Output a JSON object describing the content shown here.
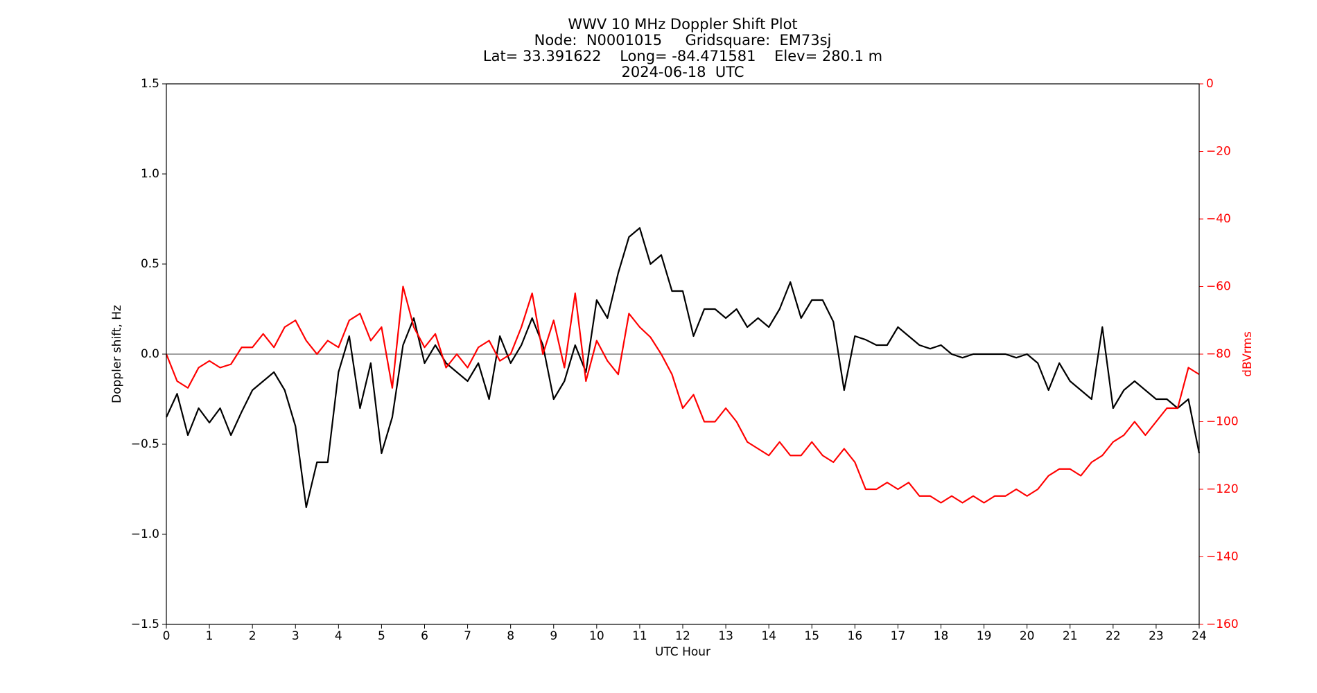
{
  "chart_data": {
    "type": "line",
    "title": [
      "WWV 10 MHz Doppler Shift Plot",
      "Node:  N0001015     Gridsquare:  EM73sj",
      "Lat= 33.391622    Long= -84.471581    Elev= 280.1 m",
      "2024-06-18  UTC"
    ],
    "xlabel": "UTC Hour",
    "ylabel": "Doppler shift, Hz",
    "y2label": "dBVrms",
    "x": [
      0,
      0.25,
      0.5,
      0.75,
      1,
      1.25,
      1.5,
      1.75,
      2,
      2.25,
      2.5,
      2.75,
      3,
      3.25,
      3.5,
      3.75,
      4,
      4.25,
      4.5,
      4.75,
      5,
      5.25,
      5.5,
      5.75,
      6,
      6.25,
      6.5,
      6.75,
      7,
      7.25,
      7.5,
      7.75,
      8,
      8.25,
      8.5,
      8.75,
      9,
      9.25,
      9.5,
      9.75,
      10,
      10.25,
      10.5,
      10.75,
      11,
      11.25,
      11.5,
      11.75,
      12,
      12.25,
      12.5,
      12.75,
      13,
      13.25,
      13.5,
      13.75,
      14,
      14.25,
      14.5,
      14.75,
      15,
      15.25,
      15.5,
      15.75,
      16,
      16.25,
      16.5,
      16.75,
      17,
      17.25,
      17.5,
      17.75,
      18,
      18.25,
      18.5,
      18.75,
      19,
      19.25,
      19.5,
      19.75,
      20,
      20.25,
      20.5,
      20.75,
      21,
      21.25,
      21.5,
      21.75,
      22,
      22.25,
      22.5,
      22.75,
      23,
      23.25,
      23.5,
      23.75,
      24
    ],
    "series": [
      {
        "name": "Doppler shift",
        "color": "#000000",
        "axis": "y",
        "values": [
          -0.35,
          -0.22,
          -0.45,
          -0.3,
          -0.38,
          -0.3,
          -0.45,
          -0.32,
          -0.2,
          -0.15,
          -0.1,
          -0.2,
          -0.4,
          -0.85,
          -0.6,
          -0.6,
          -0.1,
          0.1,
          -0.3,
          -0.05,
          -0.55,
          -0.35,
          0.05,
          0.2,
          -0.05,
          0.05,
          -0.05,
          -0.1,
          -0.15,
          -0.05,
          -0.25,
          0.1,
          -0.05,
          0.05,
          0.2,
          0.05,
          -0.25,
          -0.15,
          0.05,
          -0.1,
          0.3,
          0.2,
          0.45,
          0.65,
          0.7,
          0.5,
          0.55,
          0.35,
          0.35,
          0.1,
          0.25,
          0.25,
          0.2,
          0.25,
          0.15,
          0.2,
          0.15,
          0.25,
          0.4,
          0.2,
          0.3,
          0.3,
          0.18,
          -0.2,
          0.1,
          0.08,
          0.05,
          0.05,
          0.15,
          0.1,
          0.05,
          0.03,
          0.05,
          0,
          -0.02,
          0,
          0,
          0,
          0,
          -0.02,
          0,
          -0.05,
          -0.2,
          -0.05,
          -0.15,
          -0.2,
          -0.25,
          0.15,
          -0.3,
          -0.2,
          -0.15,
          -0.2,
          -0.25,
          -0.25,
          -0.3,
          -0.25,
          -0.55
        ]
      },
      {
        "name": "dBVrms",
        "color": "#ff0000",
        "axis": "y2",
        "values": [
          -80,
          -88,
          -90,
          -84,
          -82,
          -84,
          -83,
          -78,
          -78,
          -74,
          -78,
          -72,
          -70,
          -76,
          -80,
          -76,
          -78,
          -70,
          -68,
          -76,
          -72,
          -90,
          -60,
          -72,
          -78,
          -74,
          -84,
          -80,
          -84,
          -78,
          -76,
          -82,
          -80,
          -72,
          -62,
          -80,
          -70,
          -84,
          -62,
          -88,
          -76,
          -82,
          -86,
          -68,
          -72,
          -75,
          -80,
          -86,
          -96,
          -92,
          -100,
          -100,
          -96,
          -100,
          -106,
          -108,
          -110,
          -106,
          -110,
          -110,
          -106,
          -110,
          -112,
          -108,
          -112,
          -120,
          -120,
          -118,
          -120,
          -118,
          -122,
          -122,
          -124,
          -122,
          -124,
          -122,
          -124,
          -122,
          -122,
          -120,
          -122,
          -120,
          -116,
          -114,
          -114,
          -116,
          -112,
          -110,
          -106,
          -104,
          -100,
          -104,
          -100,
          -96,
          -96,
          -84,
          -86
        ]
      }
    ],
    "xlim": [
      0,
      24
    ],
    "xticks": [
      0,
      1,
      2,
      3,
      4,
      5,
      6,
      7,
      8,
      9,
      10,
      11,
      12,
      13,
      14,
      15,
      16,
      17,
      18,
      19,
      20,
      21,
      22,
      23,
      24
    ],
    "ylim": [
      -1.5,
      1.5
    ],
    "yticks": [
      {
        "value": -1.5,
        "label": "−1.5"
      },
      {
        "value": -1.0,
        "label": "−1.0"
      },
      {
        "value": -0.5,
        "label": "−0.5"
      },
      {
        "value": 0,
        "label": "0.0"
      },
      {
        "value": 0.5,
        "label": "0.5"
      },
      {
        "value": 1.0,
        "label": "1.0"
      },
      {
        "value": 1.5,
        "label": "1.5"
      }
    ],
    "y2lim": [
      -160,
      0
    ],
    "y2ticks": [
      {
        "value": -160,
        "label": "−160"
      },
      {
        "value": -140,
        "label": "−140"
      },
      {
        "value": -120,
        "label": "−120"
      },
      {
        "value": -100,
        "label": "−100"
      },
      {
        "value": -80,
        "label": "−80"
      },
      {
        "value": -60,
        "label": "−60"
      },
      {
        "value": -40,
        "label": "−40"
      },
      {
        "value": -20,
        "label": "−20"
      },
      0
    ],
    "y2color": "#ff0000",
    "hline": 0
  }
}
